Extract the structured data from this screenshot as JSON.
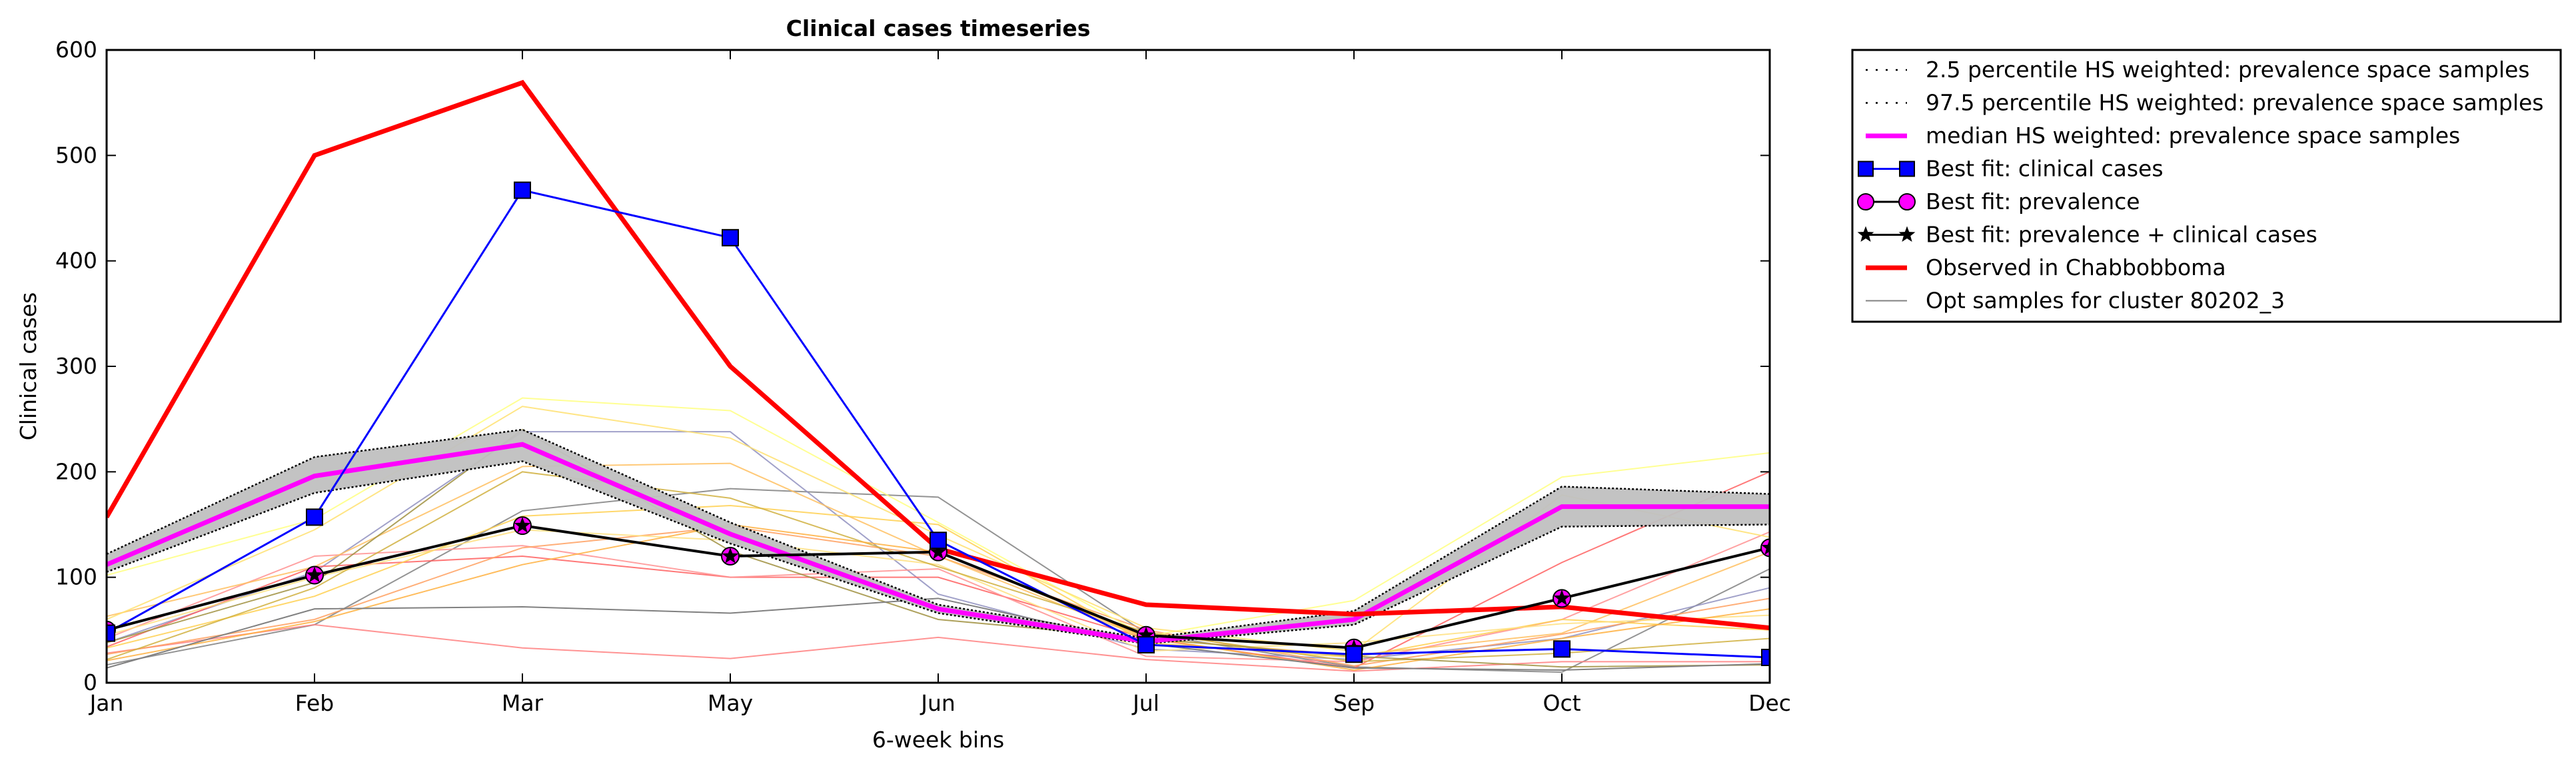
{
  "chart_data": {
    "type": "line",
    "title": "Clinical cases timeseries",
    "xlabel": "6-week bins",
    "ylabel": "Clinical cases",
    "categories": [
      "Jan",
      "Feb",
      "Mar",
      "May",
      "Jun",
      "Jul",
      "Sep",
      "Oct",
      "Dec"
    ],
    "ylim": [
      0,
      600
    ],
    "yticks": [
      0,
      100,
      200,
      300,
      400,
      500,
      600
    ],
    "grid": false,
    "legend_position": "outside right, top",
    "band": {
      "lower": [
        105,
        180,
        210,
        132,
        66,
        37,
        55,
        148,
        150
      ],
      "upper": [
        122,
        214,
        240,
        152,
        74,
        42,
        68,
        186,
        179
      ],
      "fill_color": "#c0c0c0"
    },
    "series": [
      {
        "name": "2.5 percentile HS weighted: prevalence space samples",
        "role": "lower",
        "color": "#555555",
        "style": "dotted",
        "values": [
          105,
          180,
          210,
          132,
          66,
          37,
          55,
          148,
          150
        ]
      },
      {
        "name": "97.5 percentile HS weighted: prevalence space samples",
        "role": "upper",
        "color": "#555555",
        "style": "dotted",
        "values": [
          122,
          214,
          240,
          152,
          74,
          42,
          68,
          186,
          179
        ]
      },
      {
        "name": "median HS weighted: prevalence space samples",
        "role": "median",
        "color": "#ff00ff",
        "style": "solid",
        "values": [
          112,
          196,
          226,
          141,
          70,
          39,
          60,
          167,
          167
        ]
      },
      {
        "name": "Best fit: clinical cases",
        "role": "marker",
        "color": "#0000ff",
        "marker": "square",
        "values": [
          47,
          157,
          467,
          422,
          135,
          36,
          27,
          32,
          24
        ]
      },
      {
        "name": "Best fit: prevalence",
        "role": "marker",
        "color": "#ff00ff",
        "marker": "circle",
        "values": [
          50,
          102,
          149,
          120,
          124,
          45,
          33,
          80,
          128
        ]
      },
      {
        "name": "Best fit: prevalence + clinical cases",
        "role": "marker",
        "color": "#000000",
        "marker": "star",
        "values": [
          50,
          102,
          149,
          120,
          124,
          45,
          33,
          80,
          128
        ]
      },
      {
        "name": "Observed in Chabbobboma",
        "role": "observed",
        "color": "#ff0000",
        "style": "solid",
        "values": [
          157,
          500,
          569,
          300,
          127,
          74,
          65,
          72,
          52
        ]
      },
      {
        "name": "Opt samples for cluster 80202_3",
        "role": "sample",
        "color": "#808080",
        "style": "solid",
        "values": [
          14,
          70,
          72,
          66,
          80,
          37,
          14,
          12,
          18
        ]
      }
    ],
    "background_samples": [
      {
        "color": "#808080",
        "values": [
          17,
          55,
          163,
          184,
          176,
          47,
          15,
          10,
          108
        ]
      },
      {
        "color": "#9090c0",
        "values": [
          38,
          105,
          238,
          238,
          84,
          32,
          22,
          42,
          90
        ]
      },
      {
        "color": "#ff8080",
        "values": [
          28,
          55,
          33,
          23,
          43,
          22,
          11,
          20,
          20
        ]
      },
      {
        "color": "#ff6060",
        "values": [
          34,
          110,
          120,
          100,
          100,
          42,
          14,
          114,
          200
        ]
      },
      {
        "color": "#ff9090",
        "values": [
          42,
          120,
          130,
          100,
          108,
          25,
          20,
          60,
          143
        ]
      },
      {
        "color": "#ffa060",
        "values": [
          27,
          60,
          128,
          148,
          120,
          50,
          16,
          46,
          80
        ]
      },
      {
        "color": "#ffc060",
        "values": [
          63,
          110,
          205,
          208,
          120,
          42,
          26,
          47,
          124
        ]
      },
      {
        "color": "#ffff80",
        "values": [
          102,
          155,
          270,
          258,
          152,
          44,
          78,
          195,
          218
        ]
      },
      {
        "color": "#ffe070",
        "values": [
          60,
          145,
          262,
          232,
          140,
          52,
          30,
          178,
          138
        ]
      },
      {
        "color": "#ffd050",
        "values": [
          33,
          82,
          158,
          168,
          150,
          38,
          24,
          60,
          50
        ]
      },
      {
        "color": "#ffe080",
        "values": [
          45,
          100,
          145,
          135,
          112,
          30,
          38,
          56,
          64
        ]
      },
      {
        "color": "#d0b040",
        "values": [
          22,
          90,
          200,
          175,
          110,
          48,
          20,
          28,
          42
        ]
      },
      {
        "color": "#ffb040",
        "values": [
          21,
          58,
          112,
          150,
          124,
          43,
          12,
          42,
          70
        ]
      },
      {
        "color": "#a09040",
        "values": [
          38,
          95,
          240,
          125,
          60,
          42,
          25,
          15,
          17
        ]
      }
    ]
  }
}
